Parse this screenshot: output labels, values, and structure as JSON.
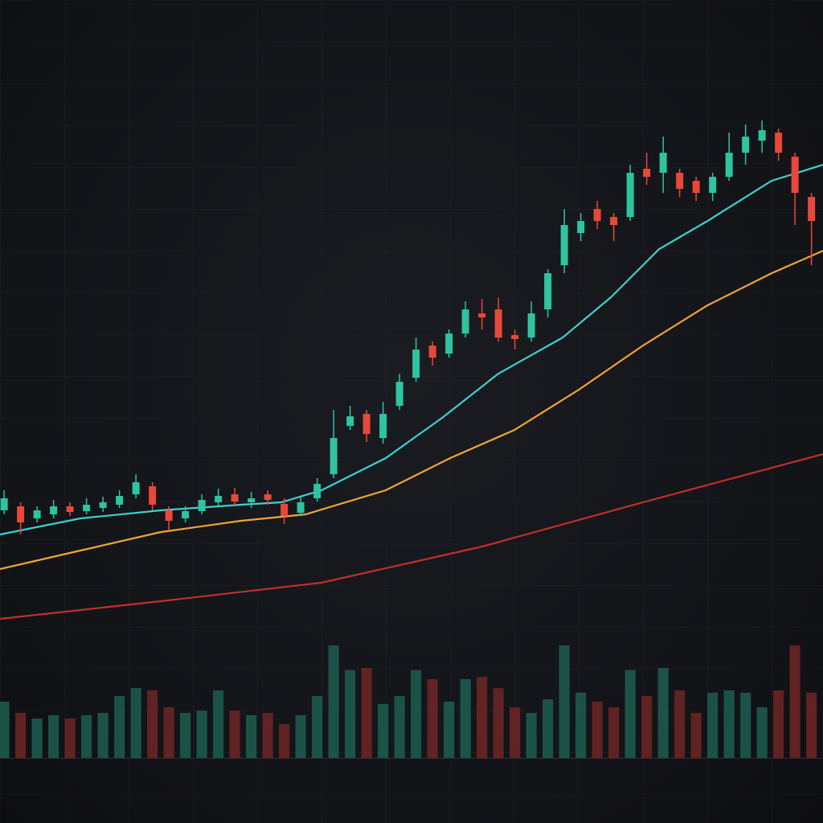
{
  "chart_data": {
    "type": "candlestick",
    "x": [
      0,
      1,
      2,
      3,
      4,
      5,
      6,
      7,
      8,
      9,
      10,
      11,
      12,
      13,
      14,
      15,
      16,
      17,
      18,
      19,
      20,
      21,
      22,
      23,
      24,
      25,
      26,
      27,
      28,
      29,
      30,
      31,
      32,
      33,
      34,
      35,
      36,
      37,
      38,
      39,
      40,
      41,
      42,
      43,
      44,
      45,
      46,
      47,
      48,
      49
    ],
    "open": [
      36.5,
      37,
      35.5,
      36,
      37,
      36.4,
      36.8,
      37.2,
      38.5,
      39.5,
      36.5,
      35.5,
      36.4,
      37.5,
      38.5,
      37.5,
      38.5,
      37.3,
      36.2,
      38,
      41,
      47,
      48.5,
      45.5,
      49.5,
      53,
      57,
      56,
      58.5,
      61,
      61.5,
      58.3,
      58,
      61.5,
      67,
      71,
      74,
      73,
      73,
      79,
      78.5,
      78.5,
      77.5,
      76,
      78,
      81,
      82.5,
      83.5,
      80.5,
      75.5
    ],
    "high": [
      39,
      37.5,
      37,
      37.8,
      37.5,
      38,
      38.2,
      39,
      41,
      40,
      37,
      37,
      38.5,
      39.2,
      39.3,
      38.8,
      39,
      38,
      38.2,
      40.5,
      49,
      49.5,
      49,
      50,
      53.5,
      58,
      57.5,
      59,
      62.5,
      62.8,
      63,
      59,
      62.5,
      66.5,
      74,
      73.5,
      75,
      73.5,
      79.5,
      81,
      83,
      79,
      78,
      78.5,
      83.5,
      84.5,
      85,
      84,
      81,
      76
    ],
    "low": [
      36,
      33.5,
      35,
      35.5,
      35.8,
      36,
      36.3,
      36.8,
      38,
      36.5,
      34,
      35,
      36,
      37,
      37.1,
      36.8,
      37.2,
      34.8,
      35.8,
      37.6,
      40.5,
      46.5,
      45,
      44.8,
      49,
      52.5,
      54.5,
      55.5,
      58,
      59,
      57.5,
      56.5,
      57.5,
      60.5,
      66,
      70,
      71.5,
      70,
      72.5,
      77,
      76,
      75.5,
      75,
      75,
      77.5,
      79.5,
      81,
      80,
      72,
      67
    ],
    "close": [
      38,
      35,
      36.5,
      37,
      36.3,
      37.2,
      37.5,
      38.3,
      40,
      37.2,
      35.2,
      36.4,
      37.8,
      38.3,
      37.6,
      38,
      37.8,
      35.8,
      37.5,
      39.8,
      45.5,
      48.2,
      46,
      48.5,
      52.5,
      56.5,
      55.5,
      58.5,
      61.5,
      60.5,
      58,
      57.8,
      61,
      66,
      72,
      72.5,
      72.5,
      72,
      78.5,
      78,
      81,
      76.5,
      76,
      78,
      81,
      83,
      83.8,
      81,
      76,
      72.5
    ],
    "volume": [
      50,
      40,
      35,
      38,
      35,
      38,
      40,
      55,
      62,
      60,
      45,
      40,
      42,
      60,
      42,
      38,
      40,
      30,
      38,
      55,
      100,
      78,
      80,
      48,
      55,
      78,
      70,
      50,
      70,
      72,
      62,
      45,
      40,
      52,
      100,
      58,
      50,
      45,
      78,
      55,
      80,
      60,
      40,
      58,
      60,
      58,
      45,
      60,
      100,
      58
    ],
    "up_color": "#2ec4a0",
    "down_color": "#e8483a",
    "volume_up_color": "#1d5e50",
    "volume_down_color": "#6e2626",
    "xlim": [
      -0.25,
      49.7
    ],
    "ylim": [
      0,
      100
    ],
    "volume_lim": [
      0,
      100
    ],
    "grid": true,
    "lines": [
      {
        "color": "#3fd0cc",
        "x": [
          -0.25,
          4.63,
          9.51,
          14.38,
          16.82,
          19.26,
          23.16,
          26.58,
          29.99,
          33.9,
          36.82,
          39.75,
          42.68,
          46.58,
          49.7
        ],
        "values": [
          33.5,
          35.5,
          36.5,
          37.2,
          37.5,
          39,
          43,
          48,
          53.5,
          58,
          63,
          69,
          72.5,
          77.5,
          79.5
        ]
      },
      {
        "color": "#f0a43a",
        "x": [
          -0.25,
          4.63,
          9.51,
          14.38,
          18.29,
          23.16,
          27.07,
          30.97,
          34.87,
          38.77,
          42.68,
          46.58,
          49.7
        ],
        "values": [
          29.2,
          31.5,
          33.8,
          35.2,
          36,
          39,
          43,
          46.5,
          51.5,
          57,
          62,
          66,
          68.8
        ]
      },
      {
        "color": "#c0302c",
        "x": [
          -0.25,
          9.51,
          19.26,
          29.02,
          38.77,
          49.7
        ],
        "values": [
          23,
          25.2,
          27.5,
          32,
          37.5,
          43.5
        ]
      }
    ]
  }
}
